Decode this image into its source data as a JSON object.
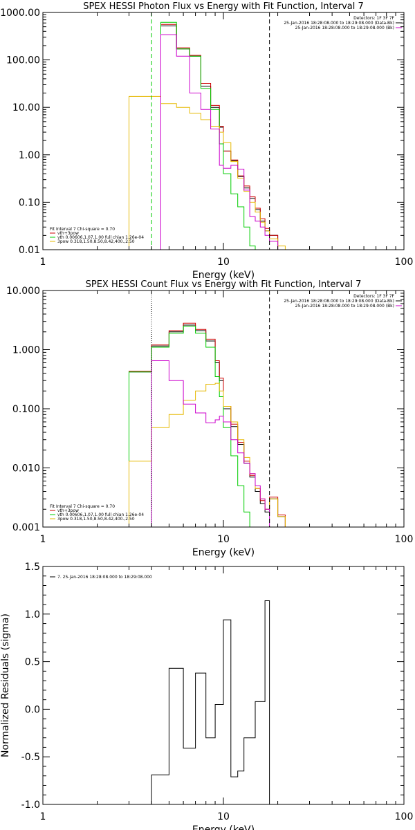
{
  "chart_data": [
    {
      "type": "line",
      "title": "SPEX HESSI Photon Flux vs Energy with Fit Function, Interval 7",
      "xlabel": "Energy (keV)",
      "ylabel": "",
      "x_scale": "log",
      "y_scale": "log",
      "xlim": [
        1,
        100
      ],
      "ylim": [
        0.01,
        1000
      ],
      "x_ticks": [
        {
          "v": 1,
          "label": "1"
        },
        {
          "v": 10,
          "label": "10"
        },
        {
          "v": 100,
          "label": "100"
        }
      ],
      "y_ticks": [
        {
          "v": 0.01,
          "label": "0.01"
        },
        {
          "v": 0.1,
          "label": "0.10"
        },
        {
          "v": 1,
          "label": "1.00"
        },
        {
          "v": 10,
          "label": "10.00"
        },
        {
          "v": 100,
          "label": "100.00"
        },
        {
          "v": 1000,
          "label": "1000.00"
        }
      ],
      "vlines": [
        {
          "x": 4.0,
          "color": "#00cc00",
          "style": "dash"
        },
        {
          "x": 18.0,
          "color": "#000000",
          "style": "dash"
        }
      ],
      "detectors": "Detectors: 1F 3F 7F",
      "time_labels": [
        {
          "text": "25-Jan-2016 18:28:08.000 to 18:29:08.000 (Data-Bk)",
          "color": "#000000"
        },
        {
          "text": "25-Jan-2016 18:28:08.000 to 18:29:08.000 (Bk)",
          "color": "#cc00cc"
        }
      ],
      "legend": [
        {
          "text": "Fit Interval  7    Chi-square = 0.70",
          "color": "#000000"
        },
        {
          "text": "vth+3pow",
          "color": "#cc0000"
        },
        {
          "text": "vth 0.00606,1.07,1.00  full chian 1.26e-04",
          "color": "#00cc00"
        },
        {
          "text": "3pow 0.318,1.50,8.50,8.42,400.,2.50",
          "color": "#e6b800"
        }
      ],
      "edges": [
        3.0,
        3.5,
        4.0,
        4.5,
        5.0,
        5.5,
        6.0,
        6.5,
        7.0,
        7.5,
        8.0,
        8.5,
        9.0,
        9.5,
        10.0,
        11.0,
        12.0,
        13.0,
        14.0,
        15.0,
        16.0,
        17.0,
        18.0,
        20.0,
        22.0,
        24.0
      ],
      "series": [
        {
          "name": "Data-Bk",
          "color": "#000000",
          "values": [
            null,
            null,
            null,
            520,
            520,
            170,
            170,
            120,
            120,
            28,
            28,
            10,
            10,
            3.8,
            1.2,
            0.75,
            0.35,
            0.2,
            0.12,
            0.07,
            0.04,
            0.025,
            0.02,
            null,
            null
          ]
        },
        {
          "name": "vth+3pow",
          "color": "#cc0000",
          "values": [
            null,
            null,
            null,
            560,
            560,
            180,
            180,
            125,
            125,
            32,
            32,
            11,
            11,
            4.0,
            1.2,
            0.78,
            0.36,
            0.22,
            0.13,
            0.075,
            0.045,
            0.028,
            0.02,
            null,
            null
          ]
        },
        {
          "name": "vth",
          "color": "#00cc00",
          "values": [
            null,
            null,
            null,
            620,
            620,
            170,
            170,
            120,
            120,
            25,
            25,
            9,
            9,
            1.7,
            0.4,
            0.15,
            0.08,
            0.03,
            0.012,
            null,
            null,
            null,
            null,
            null,
            null
          ]
        },
        {
          "name": "3pow",
          "color": "#e6b800",
          "values": [
            17,
            17,
            17,
            12,
            12,
            10,
            10,
            7.5,
            7.5,
            5.5,
            5.5,
            4.0,
            4.0,
            3.0,
            1.8,
            0.72,
            0.32,
            0.17,
            0.1,
            0.062,
            0.038,
            0.025,
            0.017,
            0.012,
            null
          ]
        },
        {
          "name": "Bk",
          "color": "#cc00cc",
          "values": [
            null,
            null,
            null,
            340,
            340,
            120,
            120,
            20,
            20,
            9.0,
            9.0,
            3.5,
            3.5,
            0.6,
            0.52,
            0.6,
            0.5,
            0.18,
            0.05,
            0.04,
            0.03,
            0.02,
            0.015,
            null,
            null
          ]
        }
      ]
    },
    {
      "type": "line",
      "title": "SPEX HESSI Count Flux vs Energy with Fit Function, Interval 7",
      "xlabel": "Energy (keV)",
      "ylabel": "",
      "x_scale": "log",
      "y_scale": "log",
      "xlim": [
        1,
        100
      ],
      "ylim": [
        0.001,
        10
      ],
      "x_ticks": [
        {
          "v": 1,
          "label": "1"
        },
        {
          "v": 10,
          "label": "10"
        },
        {
          "v": 100,
          "label": "100"
        }
      ],
      "y_ticks": [
        {
          "v": 0.001,
          "label": "0.001"
        },
        {
          "v": 0.01,
          "label": "0.010"
        },
        {
          "v": 0.1,
          "label": "0.100"
        },
        {
          "v": 1,
          "label": "1.000"
        },
        {
          "v": 10,
          "label": "10.000"
        }
      ],
      "vlines": [
        {
          "x": 4.0,
          "color": "#000000",
          "style": "dot"
        },
        {
          "x": 18.0,
          "color": "#000000",
          "style": "dash"
        }
      ],
      "detectors": "Detectors: 1F 3F 7F",
      "time_labels": [
        {
          "text": "25-Jan-2016 18:28:08.000 to 18:29:08.000 (Data-Bk)",
          "color": "#000000"
        },
        {
          "text": "25-Jan-2016 18:28:08.000 to 18:29:08.000 (Bk)",
          "color": "#cc00cc"
        }
      ],
      "legend": [
        {
          "text": "Fit Interval  7    Chi-square = 0.70",
          "color": "#000000"
        },
        {
          "text": "vth+3pow",
          "color": "#cc0000"
        },
        {
          "text": "vth 0.00606,1.07,1.00  full chian 1.26e-04",
          "color": "#00cc00"
        },
        {
          "text": "3pow 0.318,1.50,8.50,8.42,400.,2.50",
          "color": "#e6b800"
        }
      ],
      "edges": [
        3.0,
        3.5,
        4.0,
        4.5,
        5.0,
        5.5,
        6.0,
        6.5,
        7.0,
        7.5,
        8.0,
        8.5,
        9.0,
        9.5,
        10.0,
        11.0,
        12.0,
        13.0,
        14.0,
        15.0,
        16.0,
        17.0,
        18.0,
        20.0,
        22.0,
        24.0
      ],
      "series": [
        {
          "name": "Data-Bk",
          "color": "#000000",
          "values": [
            0.42,
            0.42,
            1.15,
            1.15,
            2.0,
            2.0,
            2.6,
            2.6,
            2.1,
            2.1,
            1.4,
            1.4,
            0.6,
            0.3,
            0.1,
            0.05,
            0.025,
            0.012,
            0.007,
            0.004,
            0.0025,
            0.0018,
            0.003,
            0.0015,
            null
          ]
        },
        {
          "name": "vth+3pow",
          "color": "#cc0000",
          "values": [
            0.43,
            0.43,
            1.2,
            1.2,
            2.1,
            2.1,
            2.8,
            2.8,
            2.2,
            2.2,
            1.5,
            1.5,
            0.65,
            0.33,
            0.11,
            0.055,
            0.027,
            0.013,
            0.0075,
            0.0045,
            0.0028,
            0.002,
            0.0032,
            0.0016,
            null
          ]
        },
        {
          "name": "vth",
          "color": "#00cc00",
          "values": [
            0.42,
            0.42,
            1.1,
            1.1,
            1.9,
            1.9,
            2.5,
            2.5,
            1.9,
            1.9,
            1.1,
            1.1,
            0.35,
            0.16,
            0.048,
            0.016,
            0.005,
            0.0018,
            null,
            null,
            null,
            null,
            null,
            null,
            null
          ]
        },
        {
          "name": "3pow",
          "color": "#e6b800",
          "values": [
            0.013,
            0.013,
            0.048,
            0.048,
            0.08,
            0.08,
            0.14,
            0.14,
            0.2,
            0.2,
            0.26,
            0.26,
            0.27,
            0.2,
            0.11,
            0.06,
            0.03,
            0.015,
            0.008,
            0.0045,
            0.003,
            0.002,
            0.003,
            0.0015,
            null
          ]
        },
        {
          "name": "Bk",
          "color": "#cc00cc",
          "values": [
            null,
            null,
            0.65,
            0.65,
            0.3,
            0.3,
            0.12,
            0.12,
            0.085,
            0.085,
            0.058,
            0.058,
            0.065,
            0.075,
            0.06,
            0.03,
            0.018,
            0.012,
            0.008,
            0.005,
            0.003,
            0.002,
            null,
            null,
            null
          ]
        }
      ]
    },
    {
      "type": "line",
      "title": "",
      "xlabel": "Energy (keV)",
      "ylabel": "Normalized Residuals (sigma)",
      "x_scale": "log",
      "y_scale": "linear",
      "xlim": [
        1,
        100
      ],
      "ylim": [
        -1.0,
        1.5
      ],
      "x_ticks": [
        {
          "v": 1,
          "label": "1"
        },
        {
          "v": 10,
          "label": "10"
        },
        {
          "v": 100,
          "label": "100"
        }
      ],
      "y_ticks": [
        {
          "v": -1.0,
          "label": "-1.0"
        },
        {
          "v": -0.5,
          "label": "-0.5"
        },
        {
          "v": 0.0,
          "label": "0.0"
        },
        {
          "v": 0.5,
          "label": "0.5"
        },
        {
          "v": 1.0,
          "label": "1.0"
        },
        {
          "v": 1.5,
          "label": "1.5"
        }
      ],
      "legend": [
        {
          "text": "7. 25-Jan-2016 18:28:08.000 to 18:29:08.000",
          "color": "#000000"
        }
      ],
      "edges": [
        4.0,
        4.5,
        5.0,
        5.5,
        6.0,
        6.5,
        7.0,
        7.5,
        8.0,
        8.5,
        9.0,
        9.5,
        10.0,
        11.0,
        12.0,
        13.0,
        14.0,
        15.0,
        16.0,
        17.0,
        18.0
      ],
      "series": [
        {
          "name": "",
          "color": "#000000",
          "values": [
            -0.69,
            -0.69,
            0.43,
            0.43,
            -0.41,
            -0.41,
            0.38,
            0.38,
            -0.3,
            -0.3,
            0.05,
            0.05,
            0.94,
            -0.71,
            -0.65,
            -0.3,
            -0.3,
            0.08,
            0.08,
            1.14
          ]
        }
      ]
    }
  ]
}
